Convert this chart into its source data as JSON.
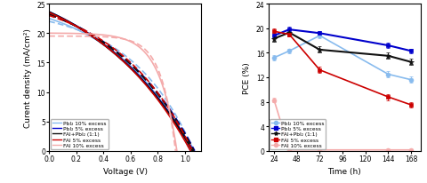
{
  "left": {
    "xlabel": "Voltage (V)",
    "ylabel": "Curent density (mA/cm²)",
    "xlim": [
      0.0,
      1.12
    ],
    "ylim": [
      0,
      25
    ],
    "yticks": [
      0,
      5,
      10,
      15,
      20,
      25
    ],
    "xticks": [
      0.0,
      0.2,
      0.4,
      0.6,
      0.8,
      1.0
    ],
    "curves": [
      {
        "label": "PbI₂ 10% excess",
        "color": "#88bbee",
        "linewidth": 1.2,
        "solid_jsc": 22.5,
        "solid_voc": 1.04,
        "solid_n": 22.0,
        "dashed_jsc": 22.0,
        "dashed_voc": 1.065,
        "dashed_n": 18.0
      },
      {
        "label": "PbI₂ 5% excess",
        "color": "#0000cc",
        "linewidth": 1.5,
        "solid_jsc": 23.6,
        "solid_voc": 1.06,
        "solid_n": 30.0,
        "dashed_jsc": 23.2,
        "dashed_voc": 1.07,
        "dashed_n": 25.0
      },
      {
        "label": "FAI+PbI₂ (1:1)",
        "color": "#111111",
        "linewidth": 1.5,
        "solid_jsc": 23.6,
        "solid_voc": 1.055,
        "solid_n": 30.0,
        "dashed_jsc": 23.2,
        "dashed_voc": 1.065,
        "dashed_n": 25.0
      },
      {
        "label": "FAI 5% excess",
        "color": "#cc0000",
        "linewidth": 1.2,
        "solid_jsc": 23.5,
        "solid_voc": 1.04,
        "solid_n": 28.0,
        "dashed_jsc": 23.0,
        "dashed_voc": 1.055,
        "dashed_n": 22.0
      },
      {
        "label": "FAI 10% excess",
        "color": "#f4aaaa",
        "linewidth": 1.2,
        "solid_jsc": 20.0,
        "solid_voc": 0.94,
        "solid_n": 5.0,
        "dashed_jsc": 19.5,
        "dashed_voc": 0.93,
        "dashed_n": 4.0
      }
    ]
  },
  "right": {
    "xlabel": "Time (h)",
    "ylabel": "PCE (%)",
    "xlim": [
      18,
      178
    ],
    "ylim": [
      0,
      24
    ],
    "yticks": [
      0,
      4,
      8,
      12,
      16,
      20,
      24
    ],
    "xticks": [
      24,
      48,
      72,
      96,
      120,
      144,
      168
    ],
    "series": [
      {
        "label": "PbI₂ 10% excess",
        "color": "#88bbee",
        "marker": "o",
        "markersize": 3.5,
        "linewidth": 1.2,
        "times": [
          24,
          40,
          72,
          144,
          168
        ],
        "pce": [
          15.2,
          16.3,
          18.8,
          12.5,
          11.6
        ],
        "err": [
          0.4,
          0.4,
          0.4,
          0.5,
          0.5
        ]
      },
      {
        "label": "PbI₂ 5% excess",
        "color": "#0000cc",
        "marker": "s",
        "markersize": 3.5,
        "linewidth": 1.5,
        "times": [
          24,
          40,
          72,
          144,
          168
        ],
        "pce": [
          18.8,
          19.8,
          19.2,
          17.2,
          16.3
        ],
        "err": [
          0.4,
          0.4,
          0.4,
          0.4,
          0.4
        ]
      },
      {
        "label": "FAI+PbI₂ (1:1)",
        "color": "#111111",
        "marker": "*",
        "markersize": 5,
        "linewidth": 1.5,
        "times": [
          24,
          40,
          72,
          144,
          168
        ],
        "pce": [
          18.3,
          19.3,
          16.5,
          15.5,
          14.5
        ],
        "err": [
          0.5,
          0.5,
          0.5,
          0.5,
          0.5
        ]
      },
      {
        "label": "FAI 5% excess",
        "color": "#cc0000",
        "marker": "s",
        "markersize": 3.5,
        "linewidth": 1.2,
        "times": [
          24,
          40,
          72,
          144,
          168
        ],
        "pce": [
          19.5,
          19.0,
          13.2,
          8.8,
          7.5
        ],
        "err": [
          0.4,
          0.4,
          0.5,
          0.5,
          0.4
        ]
      },
      {
        "label": "FAI 10% excess",
        "color": "#f4aaaa",
        "marker": "o",
        "markersize": 3.5,
        "linewidth": 1.2,
        "times": [
          24,
          40,
          72,
          144,
          168
        ],
        "pce": [
          8.3,
          0.15,
          0.15,
          0.15,
          0.15
        ],
        "err": [
          0.3,
          0.1,
          0.1,
          0.1,
          0.1
        ]
      }
    ]
  }
}
